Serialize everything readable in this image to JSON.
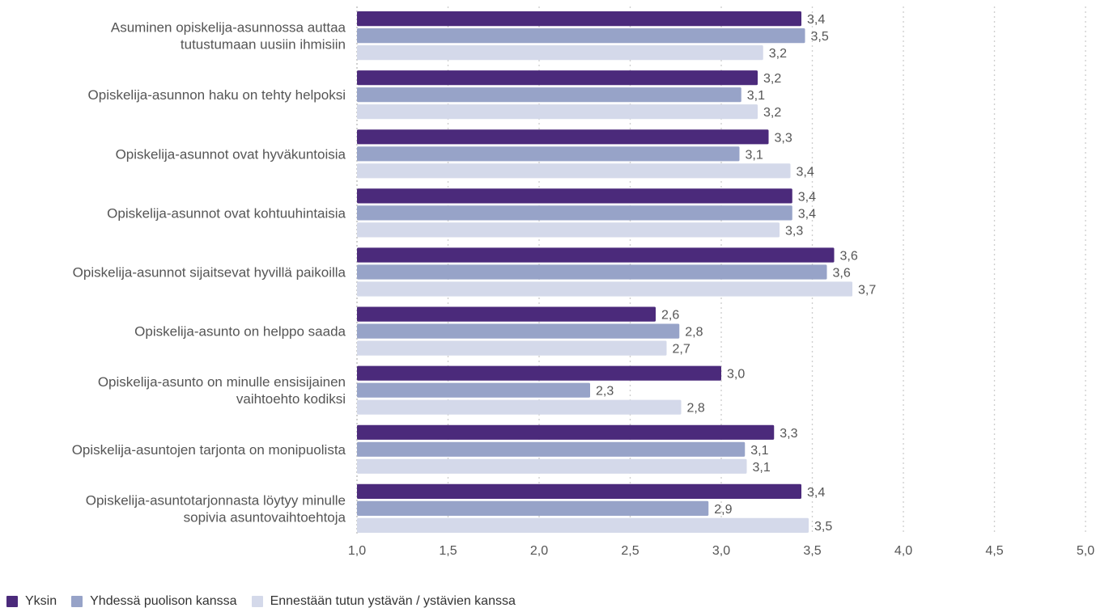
{
  "chart_data": {
    "type": "bar",
    "orientation": "horizontal",
    "categories": [
      "Asuminen opiskelija-asunnossa auttaa tutustumaan uusiin ihmisiin",
      "Opiskelija-asunnon haku on tehty helpoksi",
      "Opiskelija-asunnot ovat hyväkuntoisia",
      "Opiskelija-asunnot ovat kohtuuhintaisia",
      "Opiskelija-asunnot sijaitsevat hyvillä paikoilla",
      "Opiskelija-asunto on helppo saada",
      "Opiskelija-asunto on minulle ensisijainen vaihtoehto kodiksi",
      "Opiskelija-asuntojen tarjonta on monipuolista",
      "Opiskelija-asuntotarjonnasta löytyy minulle sopivia asuntovaihtoehtoja"
    ],
    "category_lines": [
      [
        "Asuminen opiskelija-asunnossa auttaa",
        "tutustumaan uusiin ihmisiin"
      ],
      [
        "Opiskelija-asunnon haku on tehty helpoksi"
      ],
      [
        "Opiskelija-asunnot ovat hyväkuntoisia"
      ],
      [
        "Opiskelija-asunnot ovat kohtuuhintaisia"
      ],
      [
        "Opiskelija-asunnot sijaitsevat hyvillä paikoilla"
      ],
      [
        "Opiskelija-asunto on helppo saada"
      ],
      [
        "Opiskelija-asunto on minulle ensisijainen",
        "vaihtoehto kodiksi"
      ],
      [
        "Opiskelija-asuntojen tarjonta on monipuolista"
      ],
      [
        "Opiskelija-asuntotarjonnasta löytyy minulle",
        "sopivia asuntovaihtoehtoja"
      ]
    ],
    "series": [
      {
        "name": "Yksin",
        "color": "#4b2a7b",
        "values": [
          3.44,
          3.2,
          3.26,
          3.39,
          3.62,
          2.64,
          3.0,
          3.29,
          3.44
        ],
        "labels": [
          "3,4",
          "3,2",
          "3,3",
          "3,4",
          "3,6",
          "2,6",
          "3,0",
          "3,3",
          "3,4"
        ]
      },
      {
        "name": "Yhdessä puolison kanssa",
        "color": "#97a3c8",
        "values": [
          3.46,
          3.11,
          3.1,
          3.39,
          3.58,
          2.77,
          2.28,
          3.13,
          2.93
        ],
        "labels": [
          "3,5",
          "3,1",
          "3,1",
          "3,4",
          "3,6",
          "2,8",
          "2,3",
          "3,1",
          "2,9"
        ]
      },
      {
        "name": "Ennestään tutun ystävän / ystävien kanssa",
        "color": "#d4d9ea",
        "values": [
          3.23,
          3.2,
          3.38,
          3.32,
          3.72,
          2.7,
          2.78,
          3.14,
          3.48
        ],
        "labels": [
          "3,2",
          "3,2",
          "3,4",
          "3,3",
          "3,7",
          "2,7",
          "2,8",
          "3,1",
          "3,5"
        ]
      }
    ],
    "xlim": [
      1.0,
      5.0
    ],
    "xticks": [
      1.0,
      1.5,
      2.0,
      2.5,
      3.0,
      3.5,
      4.0,
      4.5,
      5.0
    ],
    "xtick_labels": [
      "1,0",
      "1,5",
      "2,0",
      "2,5",
      "3,0",
      "3,5",
      "4,0",
      "4,5",
      "5,0"
    ],
    "grid": "vertical dotted",
    "legend_position": "bottom-left",
    "title": "",
    "xlabel": "",
    "ylabel": ""
  }
}
